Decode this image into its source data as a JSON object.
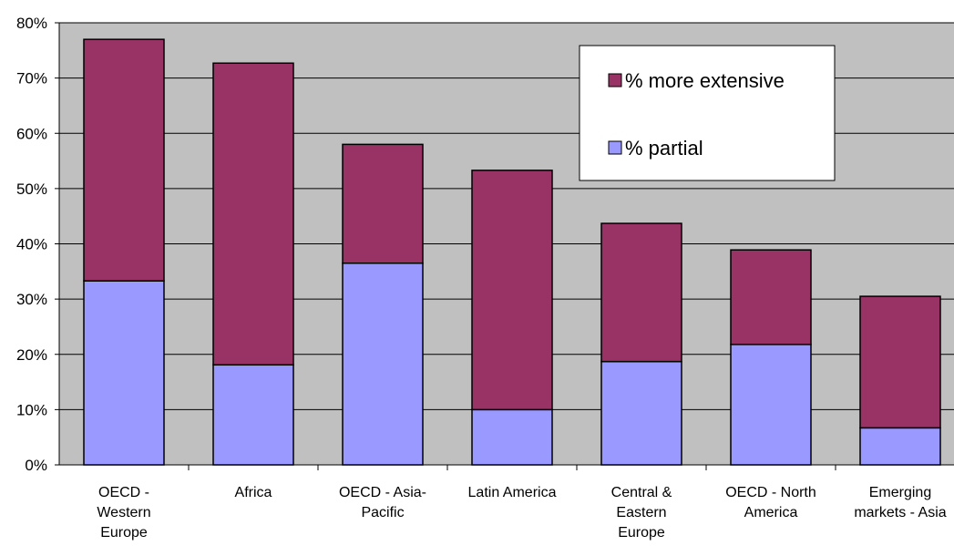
{
  "chart_data": {
    "type": "bar",
    "stacked": true,
    "title": "",
    "xlabel": "",
    "ylabel": "",
    "ylim": [
      0,
      80
    ],
    "yticks": [
      "0%",
      "10%",
      "20%",
      "30%",
      "40%",
      "50%",
      "60%",
      "70%",
      "80%"
    ],
    "grid": true,
    "legend_position": "top-right",
    "plot_background": "#c0c0c0",
    "categories": [
      [
        "OECD -",
        "Western",
        "Europe"
      ],
      [
        "Africa"
      ],
      [
        "OECD - Asia-",
        "Pacific"
      ],
      [
        "Latin America"
      ],
      [
        "Central &",
        "Eastern",
        "Europe"
      ],
      [
        "OECD - North",
        "America"
      ],
      [
        "Emerging",
        "markets - Asia"
      ]
    ],
    "series": [
      {
        "name": "% partial",
        "color": "#9999ff",
        "values": [
          33.3,
          18.1,
          36.5,
          10.0,
          18.7,
          21.8,
          6.7
        ]
      },
      {
        "name": "% more extensive",
        "color": "#993366",
        "values": [
          43.7,
          54.6,
          21.5,
          43.3,
          25.0,
          17.1,
          23.8
        ]
      }
    ],
    "legend_order": [
      "% more extensive",
      "% partial"
    ]
  }
}
